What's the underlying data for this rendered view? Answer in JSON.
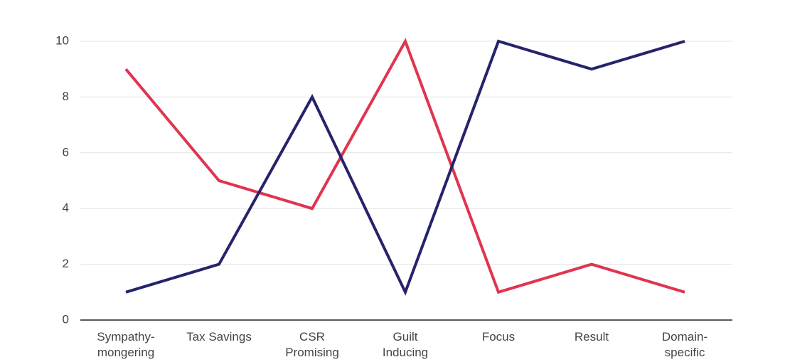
{
  "chart_data": {
    "type": "line",
    "categories": [
      "Sympathy-\nmongering",
      "Tax Savings",
      "CSR\nPromising",
      "Guilt\nInducing",
      "Focus",
      "Result",
      "Domain-\nspecific"
    ],
    "series": [
      {
        "color": "#e0344f",
        "values": [
          9,
          5,
          4,
          10,
          1,
          2,
          1
        ]
      },
      {
        "color": "#26236b",
        "values": [
          1,
          2,
          8,
          1,
          10,
          9,
          10
        ]
      }
    ],
    "ylim": [
      0,
      10
    ],
    "yticks": [
      0,
      2,
      4,
      6,
      8,
      10
    ],
    "grid": true
  }
}
